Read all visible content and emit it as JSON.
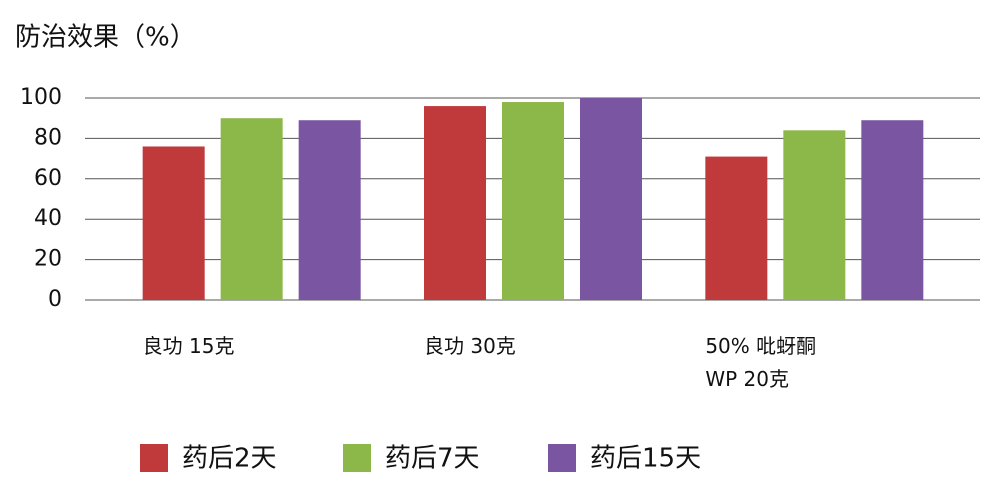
{
  "chart_data": {
    "type": "bar",
    "title": "防治效果（%）",
    "categories": [
      "良功 15克",
      "良功 30克",
      "50% 吡蚜酮\nWP 20克"
    ],
    "series": [
      {
        "name": "药后2天",
        "color": "#c0393b",
        "values": [
          76,
          96,
          71
        ]
      },
      {
        "name": "药后7天",
        "color": "#8cb84a",
        "values": [
          90,
          98,
          84
        ]
      },
      {
        "name": "药后15天",
        "color": "#7a56a2",
        "values": [
          89,
          100,
          89
        ]
      }
    ],
    "ylim": [
      0,
      100
    ],
    "yticks": [
      0,
      20,
      40,
      60,
      80,
      100
    ],
    "grid": true
  }
}
